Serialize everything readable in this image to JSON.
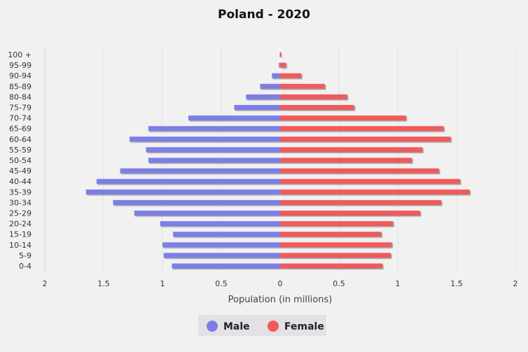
{
  "chart_data": {
    "type": "bar",
    "orientation": "horizontal",
    "title": "Poland - 2020",
    "xlabel": "Population (in millions)",
    "x_tick_labels": [
      "2",
      "1.5",
      "1",
      "0.5",
      "0",
      "0.5",
      "1",
      "1.5",
      "2"
    ],
    "xlim": [
      -2,
      2
    ],
    "categories": [
      "0-4",
      "5-9",
      "10-14",
      "15-19",
      "20-24",
      "25-29",
      "30-34",
      "35-39",
      "40-44",
      "45-49",
      "50-54",
      "55-59",
      "60-64",
      "65-69",
      "70-74",
      "75-79",
      "80-84",
      "85-89",
      "90-94",
      "95-99",
      "100 +"
    ],
    "series": [
      {
        "name": "Male",
        "color": "#7c7ee6",
        "values": [
          0.92,
          0.99,
          1.0,
          0.91,
          1.02,
          1.24,
          1.42,
          1.65,
          1.56,
          1.36,
          1.12,
          1.14,
          1.28,
          1.12,
          0.78,
          0.39,
          0.29,
          0.17,
          0.07,
          0.01,
          0.003
        ]
      },
      {
        "name": "Female",
        "color": "#f05a5a",
        "values": [
          0.87,
          0.94,
          0.95,
          0.86,
          0.96,
          1.19,
          1.37,
          1.61,
          1.53,
          1.35,
          1.12,
          1.21,
          1.45,
          1.39,
          1.07,
          0.63,
          0.57,
          0.38,
          0.18,
          0.05,
          0.01
        ]
      }
    ],
    "grid": true,
    "legend_position": "bottom-center"
  }
}
